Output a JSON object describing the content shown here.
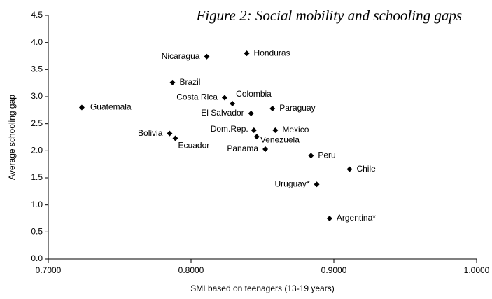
{
  "chart_data": {
    "type": "scatter",
    "title": "Figure 2: Social mobility and schooling gaps",
    "x_label": "SMI based on teenagers (13-19 years)",
    "y_label": "Average schooling gap",
    "series": [
      {
        "color": "#000000",
        "labels": [
          "Guatemala",
          "Nicaragua",
          "Honduras",
          "Brazil",
          "Costa Rica",
          "Colombia",
          "El Salvador",
          "Paraguay",
          "Bolivia",
          "Ecuador",
          "Dom.Rep.",
          "Venezuela",
          "Mexico",
          "Panama",
          "Peru",
          "Chile",
          "Uruguay*",
          "Argentina*"
        ],
        "x": [
          0.7235,
          0.811,
          0.839,
          0.787,
          0.8235,
          0.829,
          0.842,
          0.857,
          0.785,
          0.789,
          0.844,
          0.846,
          0.859,
          0.852,
          0.884,
          0.911,
          0.888,
          0.897
        ],
        "values": [
          2.8,
          3.74,
          3.8,
          3.26,
          2.98,
          2.87,
          2.69,
          2.78,
          2.32,
          2.23,
          2.38,
          2.26,
          2.38,
          2.03,
          1.91,
          1.66,
          1.38,
          0.75
        ]
      }
    ],
    "xlim": [
      0.7,
      1.0
    ],
    "xticks": [
      {
        "value": 0.7,
        "label": "0.7000"
      },
      {
        "value": 0.8,
        "label": "0.8000"
      },
      {
        "value": 0.9,
        "label": "0.9000"
      },
      {
        "value": 1.0,
        "label": "1.0000"
      }
    ],
    "ylim": [
      0,
      4.5
    ],
    "yticks": [
      {
        "value": 0,
        "label": "0.0"
      },
      0.5,
      {
        "value": 1,
        "label": "1.0"
      },
      1.5,
      {
        "value": 2,
        "label": "2.0"
      },
      2.5,
      {
        "value": 3,
        "label": "3.0"
      },
      3.5,
      {
        "value": 4,
        "label": "4.0"
      },
      4.5
    ],
    "grid": false
  }
}
